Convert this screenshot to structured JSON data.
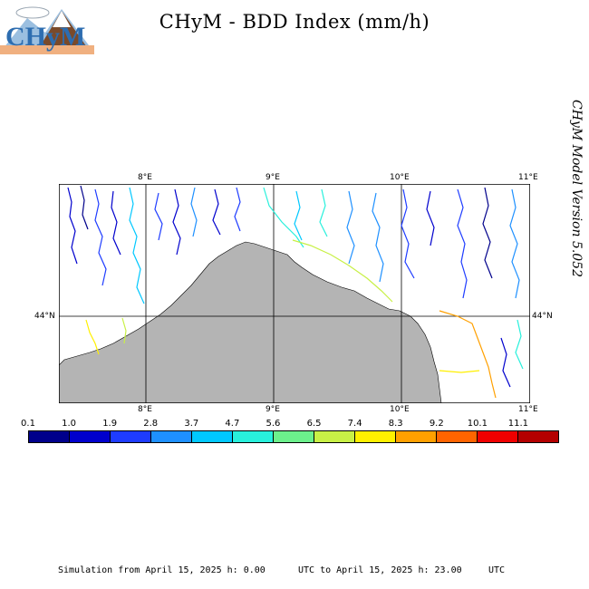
{
  "header": {
    "title": "CHyM - BDD Index (mm/h)",
    "logo_text": "CHyM"
  },
  "side": {
    "version": "CHyM Model Version 5.052"
  },
  "map": {
    "lon_labels_top": [
      "8°E",
      "9°E",
      "10°E",
      "11°E"
    ],
    "lon_labels_bottom": [
      "8°E",
      "9°E",
      "10°E",
      "11°E"
    ],
    "lat_labels_left": [
      "44°N"
    ],
    "lat_labels_right": [
      "44°N"
    ],
    "land_color": "#b4b4b4",
    "sea_color": "#ffffff"
  },
  "colorbar": {
    "ticks": [
      "0.1",
      "1.0",
      "1.9",
      "2.8",
      "3.7",
      "4.7",
      "5.6",
      "6.5",
      "7.4",
      "8.3",
      "9.2",
      "10.1",
      "11.1"
    ],
    "colors": [
      "#00008b",
      "#0000cd",
      "#1e3cff",
      "#1e90ff",
      "#00c8ff",
      "#28f0dc",
      "#6cf08c",
      "#c8f046",
      "#fff000",
      "#ffa000",
      "#ff6400",
      "#f00000",
      "#b40000"
    ]
  },
  "footer": {
    "sim_start": "Simulation from April 15, 2025 h: 0.00",
    "sim_end": "UTC to April 15, 2025 h: 23.00",
    "tz": "UTC"
  }
}
